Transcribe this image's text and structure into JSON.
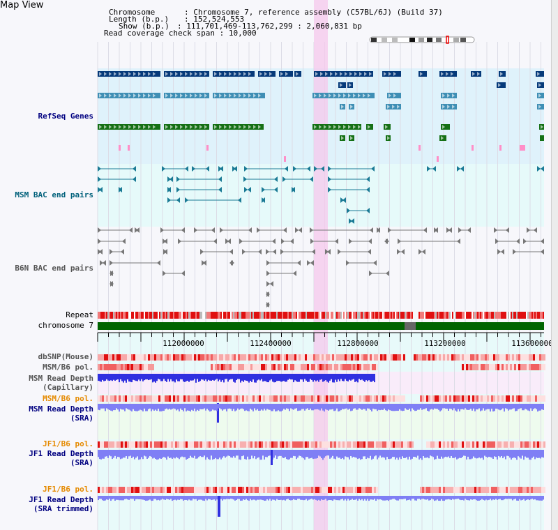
{
  "window": {
    "title": "Map View"
  },
  "info": {
    "chromosome_key": "Chromosome",
    "chromosome_value": "Chromosome 7, reference assembly (C57BL/6J) (Build 37)",
    "length_key": "Length (b.p.)",
    "length_value": "152,524,553",
    "show_key": "Show (b.p.)",
    "show_value": "111,701,469-113,762,299 : 2,060,831 bp",
    "coverage_key": "Read coverage check span",
    "coverage_value": "10,000"
  },
  "tracks": {
    "refseq": "RefSeq Genes",
    "msm_bac": "MSM BAC end pairs",
    "b6n_bac": "B6N BAC end pairs",
    "repeat": "Repeat",
    "chromosome": "chromosome 7",
    "dbsnp": "dbSNP(Mouse)",
    "msm_b6_pol_1": "MSM/B6 pol.",
    "msm_depth_cap_1": "MSM Read Depth",
    "msm_depth_cap_2": "(Capillary)",
    "msm_b6_pol_2": "MSM/B6 pol.",
    "msm_depth_sra_1": "MSM Read Depth",
    "msm_depth_sra_2": "(SRA)",
    "jf1_b6_pol_1": "JF1/B6 pol.",
    "jf1_depth_sra_1": "JF1 Read Depth",
    "jf1_depth_sra_2": "(SRA)",
    "jf1_b6_pol_2": "JF1/B6 pol.",
    "jf1_depth_trim_1": "JF1 Read Depth",
    "jf1_depth_trim_2": "(SRA trimmed)"
  },
  "axis": {
    "ticks": [
      "112000000",
      "112400000",
      "112800000",
      "113200000",
      "113600000"
    ]
  },
  "colors": {
    "refseq_bg": "#dff2fb",
    "bac_bg": "#e6fafa",
    "highlight": "#f6c8ec",
    "gene_navy": "#063a7a",
    "gene_blue": "#3f8fb5",
    "gene_green": "#157015",
    "chrom_green": "#006400",
    "depth_blue": "#3030e0",
    "depth_light": "#7f7ff5",
    "pol_red": "#e02020"
  }
}
